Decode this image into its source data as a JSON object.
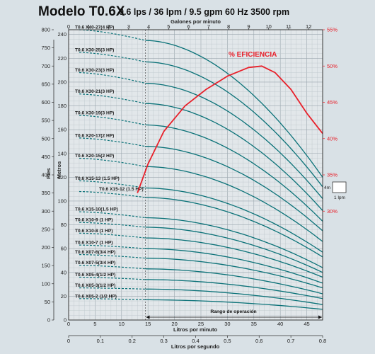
{
  "header": {
    "title": "Modelo T0.6X",
    "subtitle": "0.6 lps / 36 lpm / 9.5 gpm  60 Hz 3500 rpm"
  },
  "chart_data": {
    "type": "line",
    "x_top": {
      "label": "Galones por minuto",
      "range": [
        0,
        12.7
      ],
      "ticks": [
        0,
        1,
        2,
        3,
        4,
        5,
        6,
        7,
        8,
        9,
        10,
        11,
        12
      ]
    },
    "x_bottom": {
      "label": "Litros por minuto",
      "range": [
        0,
        48
      ],
      "ticks": [
        0,
        5,
        10,
        15,
        20,
        25,
        30,
        35,
        40,
        45
      ]
    },
    "x_bottom2": {
      "label": "Litros por segundo",
      "range": [
        0,
        0.8
      ],
      "ticks": [
        "0",
        "0.1",
        "0.2",
        "0.3",
        "0.4",
        "0.5",
        "0.6",
        "0.7",
        "0.8"
      ]
    },
    "y_feet": {
      "label": "Pies",
      "range": [
        0,
        800
      ],
      "ticks": [
        0,
        50,
        100,
        150,
        200,
        250,
        300,
        350,
        400,
        450,
        500,
        550,
        600,
        650,
        700,
        750,
        800
      ]
    },
    "y_meters": {
      "label": "Metros",
      "range": [
        0,
        244
      ],
      "ticks": [
        0,
        20,
        40,
        60,
        80,
        100,
        120,
        140,
        160,
        180,
        200,
        220,
        240
      ]
    },
    "y_eff": {
      "label": "% EFICIENCIA",
      "range": [
        15,
        55
      ],
      "ticks": [
        "30%",
        "35%",
        "40%",
        "45%",
        "50%",
        "55%"
      ],
      "tick_values": [
        30,
        35,
        40,
        45,
        50,
        55
      ]
    },
    "operating_range": {
      "label": "Rango de operación",
      "from_lpm": 14.5,
      "to_lpm": 48
    },
    "legend": {
      "top": "4m",
      "bottom": "1 lpm"
    },
    "grid": true,
    "curve_color": "#0b7278",
    "efficiency_color": "#e8202a",
    "series": [
      {
        "name": "T0.6 X40-27(4 HP)",
        "shutoff_m": 244,
        "ref_m": 235,
        "end_m": 120
      },
      {
        "name": "T0.6 X30-25(3 HP)",
        "shutoff_m": 225,
        "ref_m": 217,
        "end_m": 112
      },
      {
        "name": "T0.6 X30-23(3 HP)",
        "shutoff_m": 208,
        "ref_m": 199,
        "end_m": 102
      },
      {
        "name": "T0.6 X30-21(3 HP)",
        "shutoff_m": 190,
        "ref_m": 182,
        "end_m": 92
      },
      {
        "name": "T0.6 X30-19(3 HP)",
        "shutoff_m": 172,
        "ref_m": 164,
        "end_m": 83
      },
      {
        "name": "T0.6 X20-17(2 HP)",
        "shutoff_m": 153,
        "ref_m": 146,
        "end_m": 75
      },
      {
        "name": "T0.6 X20-15(2 HP)",
        "shutoff_m": 136,
        "ref_m": 129,
        "end_m": 66
      },
      {
        "name": "T0.6 X15-13 (1.5 HP)",
        "shutoff_m": 117,
        "ref_m": 111,
        "end_m": 57
      },
      {
        "name": "T0.6 X15-12 (1.5 HP)",
        "shutoff_m": 108,
        "ref_m": 103,
        "end_m": 53
      },
      {
        "name": "T0.6 X15-10(1.5 HP)",
        "shutoff_m": 91,
        "ref_m": 86,
        "end_m": 44
      },
      {
        "name": "T0.6 X10-9  (1 HP)",
        "shutoff_m": 82,
        "ref_m": 78,
        "end_m": 40
      },
      {
        "name": "T0.6 X10-8  (1 HP)",
        "shutoff_m": 73,
        "ref_m": 69,
        "end_m": 36
      },
      {
        "name": "T0.6 X10-7  (1 HP)",
        "shutoff_m": 63,
        "ref_m": 60,
        "end_m": 31
      },
      {
        "name": "T0.6 X07-6(3/4 HP)",
        "shutoff_m": 55,
        "ref_m": 52,
        "end_m": 27
      },
      {
        "name": "T0.6 X07-5(3/4 HP)",
        "shutoff_m": 46,
        "ref_m": 43,
        "end_m": 22
      },
      {
        "name": "T0.6 X05-4(1/2 HP)",
        "shutoff_m": 36,
        "ref_m": 34,
        "end_m": 18
      },
      {
        "name": "T0.6 X05-3(1/2 HP)",
        "shutoff_m": 27,
        "ref_m": 26,
        "end_m": 13
      },
      {
        "name": "T0.6 X05-2 (1/2 HP)",
        "shutoff_m": 18,
        "ref_m": 17,
        "end_m": 9
      }
    ],
    "efficiency": {
      "name": "% EFICIENCIA",
      "x_lpm": [
        13,
        15,
        18,
        22,
        26,
        30,
        34,
        36.5,
        39,
        42,
        45,
        48
      ],
      "y_pct": [
        32.5,
        36.5,
        41,
        44.5,
        46.8,
        48.6,
        49.8,
        50.0,
        49.1,
        46.8,
        43.5,
        40.7
      ]
    }
  }
}
